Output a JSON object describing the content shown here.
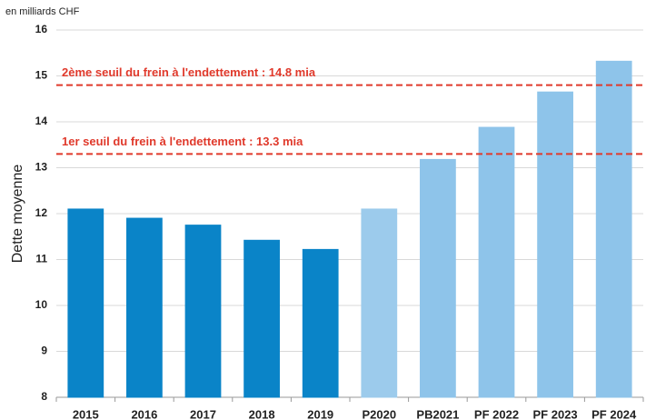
{
  "chart_data": {
    "type": "bar",
    "unit_note": "en milliards CHF",
    "y_label": "Dette moyenne",
    "categories": [
      "2015",
      "2016",
      "2017",
      "2018",
      "2019",
      "P2020",
      "PB2021",
      "PF 2022",
      "PF 2023",
      "PF 2024"
    ],
    "values": [
      12.1,
      11.9,
      11.75,
      11.42,
      11.22,
      12.1,
      13.18,
      13.88,
      14.65,
      15.32
    ],
    "colors": [
      "#0a84c8",
      "#0a84c8",
      "#0a84c8",
      "#0a84c8",
      "#0a84c8",
      "#9ccbec",
      "#8ec4ea",
      "#8ec4ea",
      "#8ec4ea",
      "#8ec4ea"
    ],
    "ylim": [
      8,
      16
    ],
    "yticks": [
      8,
      9,
      10,
      11,
      12,
      13,
      14,
      15,
      16
    ],
    "grid": true,
    "reference_lines": [
      {
        "value": 14.8,
        "label": "2ème seuil du frein à l'endettement : 14.8 mia",
        "color": "#e0392b"
      },
      {
        "value": 13.3,
        "label": "1er seuil du frein à l'endettement : 13.3 mia",
        "color": "#e0392b"
      }
    ]
  }
}
